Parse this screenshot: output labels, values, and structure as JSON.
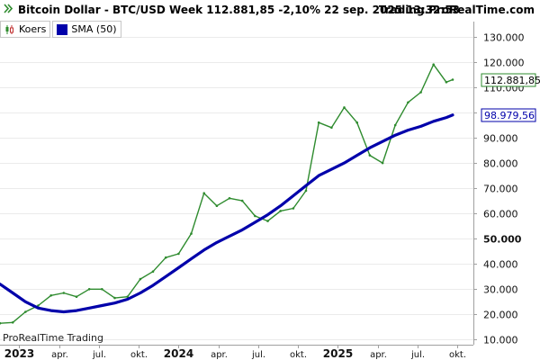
{
  "header": {
    "left": "Bitcoin Dollar - BTC/USD Week 112.881,85 -2,10% 22 sep. 2025 13:32:53",
    "right": "Trading.ProRealTime.com"
  },
  "legend": [
    {
      "label": "Koers",
      "icon": "candlestick-icon",
      "color": "#2e8b2e"
    },
    {
      "label": "SMA (50)",
      "icon": "color-swatch",
      "color": "#0000aa"
    }
  ],
  "watermark": "ProRealTime Trading",
  "chart_data": {
    "type": "line",
    "title": "Bitcoin Dollar - BTC/USD Week",
    "ylim": [
      8000,
      136000
    ],
    "xlim": [
      2022.88,
      2025.85
    ],
    "y_ticks": [
      {
        "value": 130000,
        "label": "130.000"
      },
      {
        "value": 120000,
        "label": "120.000"
      },
      {
        "value": 110000,
        "label": "110.000"
      },
      {
        "value": 100000,
        "label": "100.000"
      },
      {
        "value": 90000,
        "label": "90.000"
      },
      {
        "value": 80000,
        "label": "80.000"
      },
      {
        "value": 70000,
        "label": "70.000"
      },
      {
        "value": 60000,
        "label": "60.000"
      },
      {
        "value": 50000,
        "label": "50.000",
        "bold": true
      },
      {
        "value": 40000,
        "label": "40.000"
      },
      {
        "value": 30000,
        "label": "30.000"
      },
      {
        "value": 20000,
        "label": "20.000"
      },
      {
        "value": 10000,
        "label": "10.000"
      }
    ],
    "x_ticks": [
      {
        "x": 2023.0,
        "label": "2023",
        "bold": true
      },
      {
        "x": 2023.25,
        "label": "apr."
      },
      {
        "x": 2023.5,
        "label": "jul."
      },
      {
        "x": 2023.75,
        "label": "okt."
      },
      {
        "x": 2024.0,
        "label": "2024",
        "bold": true
      },
      {
        "x": 2024.25,
        "label": "apr."
      },
      {
        "x": 2024.5,
        "label": "jul."
      },
      {
        "x": 2024.75,
        "label": "okt."
      },
      {
        "x": 2025.0,
        "label": "2025",
        "bold": true
      },
      {
        "x": 2025.25,
        "label": "apr."
      },
      {
        "x": 2025.5,
        "label": "jul."
      },
      {
        "x": 2025.75,
        "label": "okt."
      }
    ],
    "price_labels": [
      {
        "label": "112.881,85",
        "value": 112881.85,
        "series": "Koers"
      },
      {
        "label": "98.979,56",
        "value": 98979.56,
        "series": "SMA (50)"
      }
    ],
    "series": [
      {
        "name": "Koers",
        "color": "#2e8b2e",
        "x": [
          2022.88,
          2022.96,
          2023.04,
          2023.12,
          2023.2,
          2023.28,
          2023.36,
          2023.44,
          2023.52,
          2023.6,
          2023.68,
          2023.76,
          2023.84,
          2023.92,
          2024.0,
          2024.08,
          2024.16,
          2024.24,
          2024.32,
          2024.4,
          2024.48,
          2024.56,
          2024.64,
          2024.72,
          2024.8,
          2024.88,
          2024.96,
          2025.04,
          2025.12,
          2025.2,
          2025.28,
          2025.36,
          2025.44,
          2025.52,
          2025.6,
          2025.68,
          2025.72
        ],
        "y": [
          16500,
          16800,
          21000,
          23500,
          27500,
          28500,
          27000,
          30000,
          30000,
          26500,
          27000,
          34000,
          37000,
          42500,
          44000,
          52000,
          68000,
          63000,
          66000,
          65000,
          59000,
          57000,
          61000,
          62000,
          69000,
          96000,
          94000,
          102000,
          96000,
          83000,
          80000,
          95000,
          104000,
          108000,
          119000,
          112000,
          113000
        ]
      },
      {
        "name": "SMA (50)",
        "color": "#0000aa",
        "x": [
          2022.88,
          2022.96,
          2023.04,
          2023.12,
          2023.2,
          2023.28,
          2023.36,
          2023.44,
          2023.52,
          2023.6,
          2023.68,
          2023.76,
          2023.84,
          2023.92,
          2024.0,
          2024.08,
          2024.16,
          2024.24,
          2024.32,
          2024.4,
          2024.48,
          2024.56,
          2024.64,
          2024.72,
          2024.8,
          2024.88,
          2024.96,
          2025.04,
          2025.12,
          2025.2,
          2025.28,
          2025.36,
          2025.44,
          2025.52,
          2025.6,
          2025.68,
          2025.72
        ],
        "y": [
          32000,
          28500,
          25000,
          22500,
          21500,
          21000,
          21500,
          22500,
          23500,
          24500,
          26000,
          28500,
          31500,
          35000,
          38500,
          42000,
          45500,
          48500,
          51000,
          53500,
          56500,
          59500,
          63000,
          67000,
          71000,
          75000,
          77500,
          80000,
          83000,
          86000,
          88500,
          91000,
          93000,
          94500,
          96500,
          98000,
          99000
        ]
      }
    ]
  }
}
